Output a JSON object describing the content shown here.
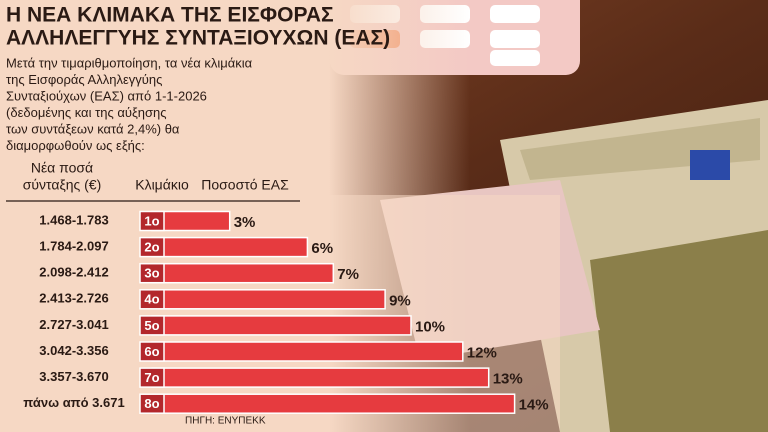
{
  "chart_data": {
    "type": "bar",
    "title": [
      "Η ΝΕΑ ΚΛΙΜΑΚΑ ΤΗΣ ΕΙΣΦΟΡΑΣ",
      "ΑΛΛΗΛΕΓΓΥΗΣ ΣΥΝΤΑΞΙΟΥΧΩΝ (ΕΑΣ)"
    ],
    "subtitle": [
      "Μετά την τιμαριθμοποίηση, τα νέα κλιμάκια",
      "της Εισφοράς Αλληλεγγύης",
      "Συνταξιούχων (ΕΑΣ) από 1-1-2026",
      "(δεδομένης και της αύξησης",
      "των συντάξεων κατά 2,4%) θα",
      "διαμορφωθούν ως εξής:"
    ],
    "column_headers": {
      "amounts": [
        "Νέα ποσά",
        "σύνταξης (€)"
      ],
      "tier": "Κλιμάκιο",
      "rate": "Ποσοστό ΕΑΣ"
    },
    "categories": [
      "1.468-1.783",
      "1.784-2.097",
      "2.098-2.412",
      "2.413-2.726",
      "2.727-3.041",
      "3.042-3.356",
      "3.357-3.670",
      "πάνω από 3.671"
    ],
    "tiers": [
      "1ο",
      "2ο",
      "3ο",
      "4ο",
      "5ο",
      "6ο",
      "7ο",
      "8ο"
    ],
    "values": [
      3,
      6,
      7,
      9,
      10,
      12,
      13,
      14
    ],
    "value_labels": [
      "3%",
      "6%",
      "7%",
      "9%",
      "10%",
      "12%",
      "13%",
      "14%"
    ],
    "color": "#e63b3f",
    "source": "ΠΗΓΗ: ΕΝΥΠΕΚΚ"
  }
}
